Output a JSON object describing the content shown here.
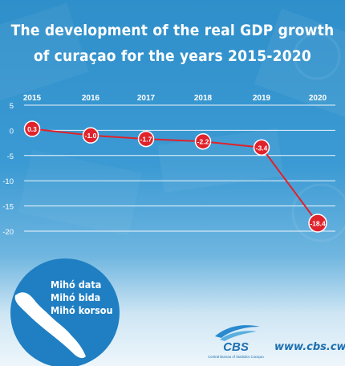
{
  "title_lines": [
    "The development of the real GDP growth",
    "of curaçao for the years 2015-2020"
  ],
  "chart_data": {
    "type": "line",
    "title": "The development of the real GDP growth of curaçao for the years 2015-2020",
    "categories": [
      "2015",
      "2016",
      "2017",
      "2018",
      "2019",
      "2020"
    ],
    "series": [
      {
        "values": [
          0.3,
          -1.0,
          -1.7,
          -2.2,
          -3.4,
          -18.4
        ]
      }
    ],
    "data_labels": [
      "0.3",
      "-1.0",
      "-1.7",
      "-2.2",
      "-3.4",
      "-18.4"
    ],
    "yticks": [
      "5",
      "0",
      "-5",
      "-10",
      "-15",
      "-20"
    ],
    "ylim": [
      -20,
      5
    ],
    "grid": true,
    "line_color": "#e0222b",
    "marker_color": "#e0222b",
    "xlabel": "",
    "ylabel": ""
  },
  "badge": {
    "lines": [
      "Mihó data",
      "Mihó bida",
      "Mihó korsou"
    ]
  },
  "footer": {
    "logo_text": "CBS",
    "logo_subtext": "Central Bureau of Statistics Curaçao",
    "url": "www.cbs.cw"
  },
  "colors": {
    "background": "#3b9ad3",
    "accent": "#e0222b",
    "brand": "#1d6fb0"
  }
}
